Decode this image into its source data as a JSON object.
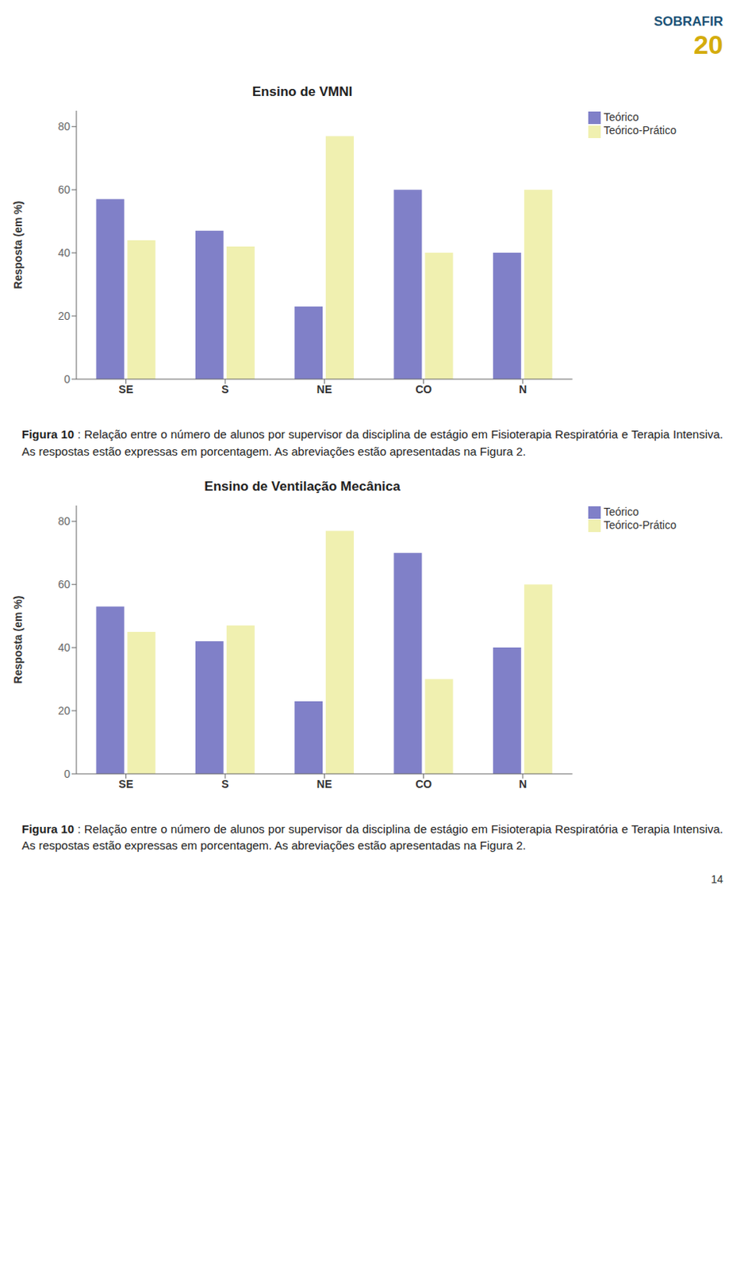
{
  "chart_data": [
    {
      "type": "bar",
      "title": "Ensino de VMNI",
      "categories": [
        "SE",
        "S",
        "NE",
        "CO",
        "N"
      ],
      "series": [
        {
          "name": "Teórico",
          "color": "#8080c8",
          "values": [
            57,
            47,
            23,
            60,
            40
          ]
        },
        {
          "name": "Teórico-Prático",
          "color": "#f0f0b0",
          "values": [
            44,
            42,
            77,
            40,
            60
          ]
        }
      ],
      "ylabel": "Resposta (em %)",
      "ylim": [
        0,
        85
      ],
      "yticks": [
        0,
        20,
        40,
        60,
        80
      ],
      "legend": "upper right",
      "annotations": [
        "SOBRAFIR",
        "20",
        "Figura 10",
        ": Relação entre o número de alunos por supervisor da disciplina de estágio em Fisioterapia Respiratória e Terapia Intensiva. As respostas estão expressas em porcentagem. As abreviações estão apresentadas na Figura 2."
      ]
    },
    {
      "type": "bar",
      "title": "Ensino de Ventilação Mecânica",
      "categories": [
        "SE",
        "S",
        "NE",
        "CO",
        "N"
      ],
      "series": [
        {
          "name": "Teórico",
          "color": "#8080c8",
          "values": [
            53,
            42,
            23,
            70,
            40
          ]
        },
        {
          "name": "Teórico-Prático",
          "color": "#f0f0b0",
          "values": [
            45,
            47,
            77,
            30,
            60
          ]
        }
      ],
      "ylabel": "Resposta (em %)",
      "ylim": [
        0,
        85
      ],
      "yticks": [
        0,
        20,
        40,
        60,
        80
      ],
      "legend": "upper right",
      "annotations": [
        "Figura 10",
        ": Relação entre o número de alunos por supervisor da disciplina de estágio em Fisioterapia Respiratória e Terapia Intensiva. As respostas estão expressas em porcentagem. As abreviações estão apresentadas na Figura 2.",
        "14"
      ]
    }
  ]
}
